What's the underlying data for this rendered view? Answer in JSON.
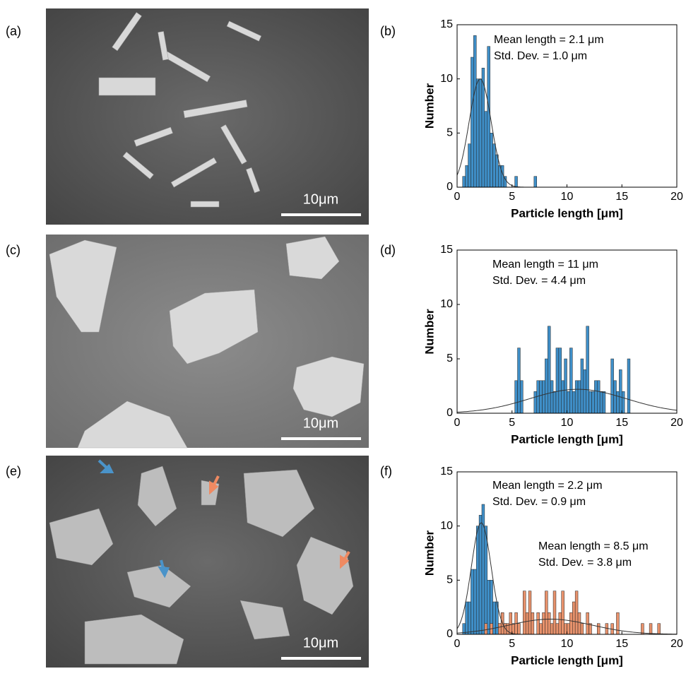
{
  "panels": [
    {
      "label": "(a)",
      "scale_bar": "10μm"
    },
    {
      "label": "(c)",
      "scale_bar": "10μm"
    },
    {
      "label": "(e)",
      "scale_bar": "10μm"
    }
  ],
  "chart_data": [
    {
      "type": "histogram",
      "label": "(b)",
      "xlabel": "Particle length [μm]",
      "ylabel": "Number",
      "xlim": [
        0,
        20
      ],
      "ylim": [
        0,
        15
      ],
      "xticks": [
        0,
        5,
        10,
        15,
        20
      ],
      "yticks": [
        0,
        5,
        10,
        15
      ],
      "annotations": [
        "Mean length = 2.1 μm",
        "Std. Dev. = 1.0 μm"
      ],
      "series": [
        {
          "color": "#3f8fc8",
          "bins": [
            0.5,
            0.75,
            1.0,
            1.25,
            1.5,
            1.75,
            2.0,
            2.25,
            2.5,
            2.75,
            3.0,
            3.25,
            3.5,
            3.75,
            4.0,
            4.25,
            4.5,
            4.75,
            5.0,
            5.25,
            5.5,
            5.75,
            6.0,
            6.25,
            6.5,
            6.75,
            7.0,
            7.25
          ],
          "values": [
            1,
            2,
            4,
            12,
            14,
            10,
            10,
            11,
            7,
            13,
            5,
            4,
            3,
            2,
            2,
            1,
            0,
            0,
            0,
            1,
            0,
            0,
            0,
            0,
            0,
            0,
            1
          ],
          "fit": {
            "mean": 2.1,
            "std": 1.0,
            "peak": 10
          }
        }
      ]
    },
    {
      "type": "histogram",
      "label": "(d)",
      "xlabel": "Particle length [μm]",
      "ylabel": "Number",
      "xlim": [
        0,
        20
      ],
      "ylim": [
        0,
        15
      ],
      "xticks": [
        0,
        5,
        10,
        15,
        20
      ],
      "yticks": [
        0,
        5,
        10,
        15
      ],
      "annotations": [
        "Mean length =  11 μm",
        "Std. Dev. = 4.4 μm"
      ],
      "series": [
        {
          "color": "#3f8fc8",
          "bins": [
            5.25,
            5.5,
            5.75,
            6.0,
            6.25,
            6.5,
            6.75,
            7.0,
            7.25,
            7.5,
            7.75,
            8.0,
            8.25,
            8.5,
            8.75,
            9.0,
            9.25,
            9.5,
            9.75,
            10.0,
            10.25,
            10.5,
            10.75,
            11.0,
            11.25,
            11.5,
            11.75,
            12.0,
            12.25,
            12.5,
            12.75,
            13.0,
            13.25,
            13.5,
            13.75,
            14.0,
            14.25,
            14.5,
            14.75,
            15.0,
            15.25,
            15.5,
            15.75
          ],
          "values": [
            3,
            6,
            3,
            0,
            0,
            0,
            0,
            2,
            3,
            3,
            3,
            5,
            8,
            3,
            2,
            6,
            6,
            3,
            5,
            2,
            6,
            2,
            3,
            3,
            5,
            4,
            8,
            2,
            2,
            3,
            3,
            2,
            2,
            0,
            0,
            5,
            3,
            2,
            4,
            2,
            0,
            5
          ],
          "fit": {
            "mean": 11,
            "std": 4.4,
            "peak": 2.2
          }
        }
      ]
    },
    {
      "type": "histogram",
      "label": "(f)",
      "xlabel": "Particle length [μm]",
      "ylabel": "Number",
      "xlim": [
        0,
        20
      ],
      "ylim": [
        0,
        15
      ],
      "xticks": [
        0,
        5,
        10,
        15,
        20
      ],
      "yticks": [
        0,
        5,
        10,
        15
      ],
      "annotations": [
        "Mean length = 2.2 μm",
        "Std. Dev. = 0.9 μm",
        "Mean length = 8.5 μm",
        "Std. Dev. = 3.8 μm"
      ],
      "series": [
        {
          "color": "#3f8fc8",
          "bins": [
            0.5,
            0.75,
            1.0,
            1.25,
            1.5,
            1.75,
            2.0,
            2.25,
            2.5,
            2.75,
            3.0,
            3.25,
            3.5,
            3.75,
            4.0,
            4.25,
            4.5
          ],
          "values": [
            1,
            3,
            3,
            6,
            6,
            10,
            11,
            12,
            10,
            5,
            5,
            3,
            3,
            1,
            2,
            1
          ],
          "fit": {
            "mean": 2.2,
            "std": 0.9,
            "peak": 10.3
          }
        },
        {
          "color": "#e8926c",
          "bins": [
            2.5,
            2.75,
            3.0,
            3.25,
            3.5,
            3.75,
            4.0,
            4.25,
            4.5,
            4.75,
            5.0,
            5.25,
            5.5,
            5.75,
            6.0,
            6.25,
            6.5,
            6.75,
            7.0,
            7.25,
            7.5,
            7.75,
            8.0,
            8.25,
            8.5,
            8.75,
            9.0,
            9.25,
            9.5,
            9.75,
            10.0,
            10.25,
            10.5,
            10.75,
            11.0,
            11.25,
            11.5,
            11.75,
            12.0,
            12.25,
            12.5,
            12.75,
            13.0,
            13.25,
            13.5,
            13.75,
            14.0,
            14.25,
            14.5,
            14.75,
            15.0,
            15.25,
            15.5,
            15.75,
            16.0,
            16.25,
            16.5,
            16.75,
            17.0,
            17.25,
            17.5,
            17.75,
            18.0,
            18.25,
            18.5
          ],
          "values": [
            1,
            0,
            1,
            0,
            0,
            1,
            2,
            1,
            1,
            2,
            1,
            2,
            1,
            0,
            4,
            2,
            4,
            2,
            0,
            2,
            1,
            2,
            4,
            2,
            1,
            4,
            1,
            2,
            4,
            1,
            1,
            2,
            3,
            4,
            2,
            1,
            0,
            2,
            1,
            0,
            0,
            1,
            0,
            0,
            1,
            0,
            1,
            0,
            2,
            0,
            0,
            0,
            0,
            0,
            0,
            0,
            0,
            1,
            0,
            0,
            1,
            0,
            0,
            1
          ],
          "fit": {
            "mean": 8.5,
            "std": 3.8,
            "peak": 1.4
          }
        }
      ]
    }
  ]
}
